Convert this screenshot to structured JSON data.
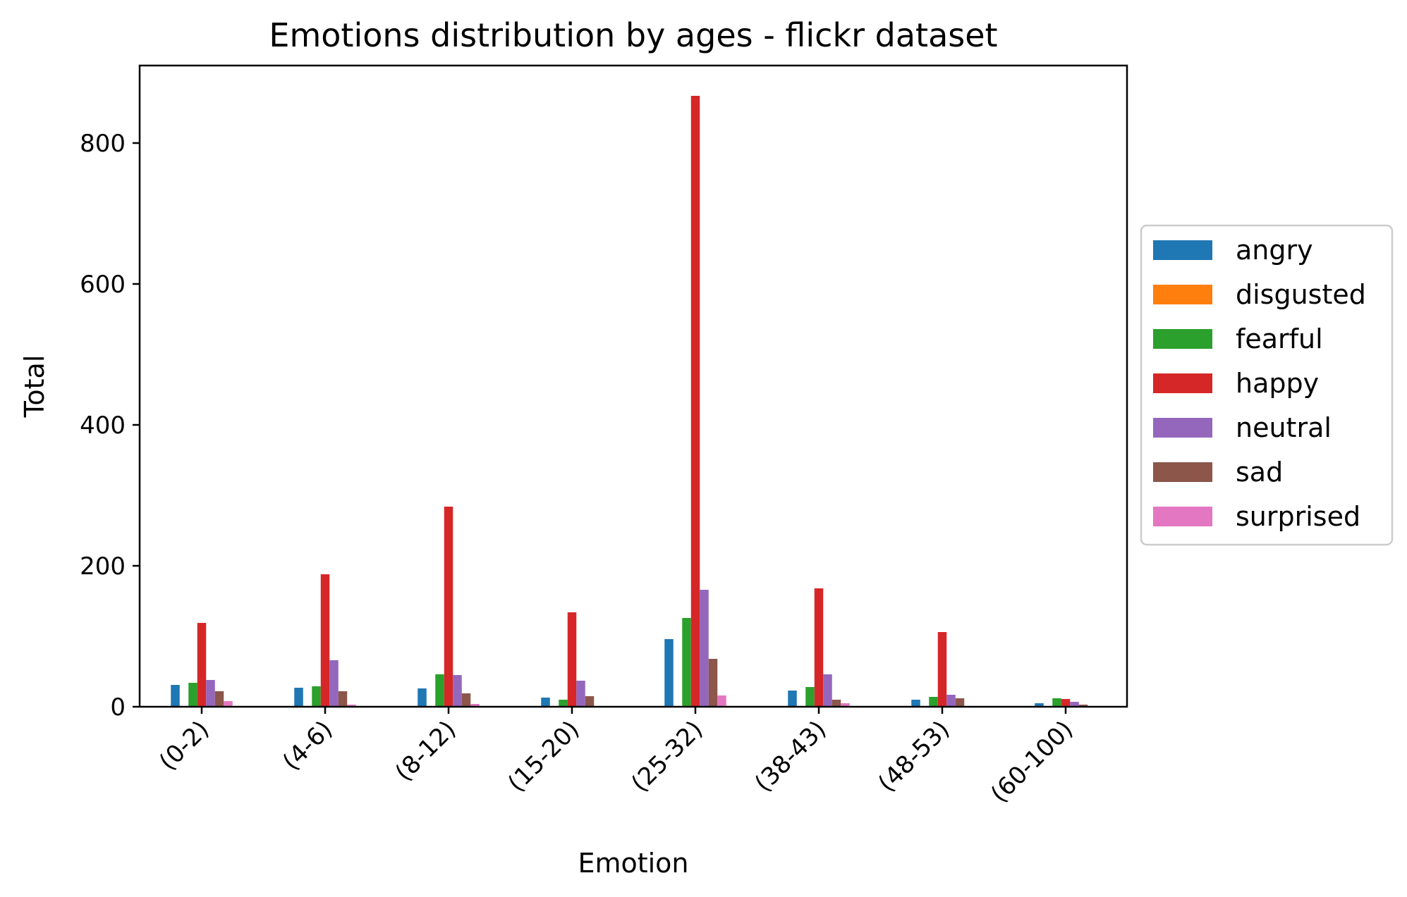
{
  "chart_data": {
    "type": "bar",
    "title": "Emotions distribution by ages - flickr dataset",
    "xlabel": "Emotion",
    "ylabel": "Total",
    "ylim": [
      0,
      910
    ],
    "yticks": [
      0,
      200,
      400,
      600,
      800
    ],
    "categories": [
      "(0-2)",
      "(4-6)",
      "(8-12)",
      "(15-20)",
      "(25-32)",
      "(38-43)",
      "(48-53)",
      "(60-100)"
    ],
    "legend_position": "outside-right",
    "grid": false,
    "series": [
      {
        "name": "angry",
        "color": "#1f77b4",
        "values": [
          31,
          27,
          26,
          13,
          96,
          23,
          10,
          5
        ]
      },
      {
        "name": "disgusted",
        "color": "#ff7f0e",
        "values": [
          0,
          0,
          0,
          0,
          0,
          0,
          0,
          0
        ]
      },
      {
        "name": "fearful",
        "color": "#2ca02c",
        "values": [
          34,
          29,
          46,
          10,
          126,
          28,
          14,
          12
        ]
      },
      {
        "name": "happy",
        "color": "#d62728",
        "values": [
          119,
          188,
          284,
          134,
          867,
          168,
          106,
          11
        ]
      },
      {
        "name": "neutral",
        "color": "#9467bd",
        "values": [
          38,
          66,
          45,
          37,
          166,
          46,
          17,
          7
        ]
      },
      {
        "name": "sad",
        "color": "#8c564b",
        "values": [
          22,
          22,
          19,
          15,
          68,
          10,
          12,
          3
        ]
      },
      {
        "name": "surprised",
        "color": "#e377c2",
        "values": [
          8,
          3,
          4,
          1,
          16,
          5,
          1,
          1
        ]
      }
    ]
  }
}
